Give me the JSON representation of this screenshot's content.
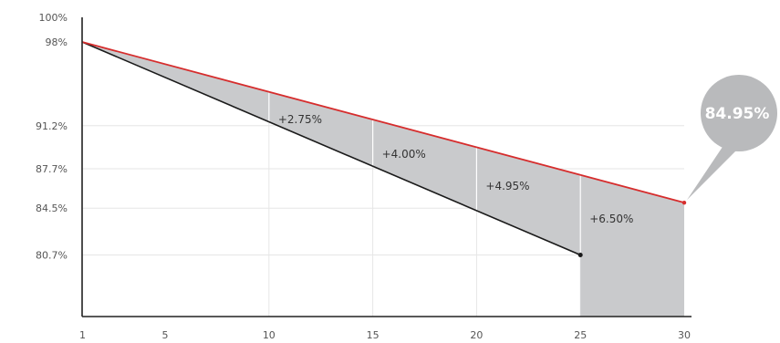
{
  "chart_data": {
    "type": "line",
    "title": "",
    "xlabel": "",
    "ylabel": "",
    "x_ticks": [
      "1",
      "5",
      "10",
      "15",
      "20",
      "25",
      "30"
    ],
    "y_ticks": [
      "100%",
      "98%",
      "91.2%",
      "87.7%",
      "84.5%",
      "80.7%"
    ],
    "y_tick_values": [
      100,
      98,
      91.2,
      87.7,
      84.5,
      80.7
    ],
    "xlim": [
      1,
      30
    ],
    "ylim": [
      75.7,
      100
    ],
    "grid": true,
    "series": [
      {
        "color": "#d62d2d",
        "points": [
          [
            1,
            98
          ],
          [
            30,
            84.95
          ]
        ]
      },
      {
        "color": "#1a1a1a",
        "points": [
          [
            1,
            98
          ],
          [
            25,
            80.7
          ]
        ]
      }
    ],
    "shaded_fill_color": "#c9cacc",
    "differences": [
      {
        "x_range": [
          10,
          15
        ],
        "label": "+2.75%"
      },
      {
        "x_range": [
          15,
          20
        ],
        "label": "+4.00%"
      },
      {
        "x_range": [
          20,
          25
        ],
        "label": "+4.95%"
      },
      {
        "x_range": [
          25,
          30
        ],
        "label": "+6.50%"
      }
    ],
    "callout": {
      "label": "84.95%",
      "x": 30,
      "y": 84.95,
      "color": "#b9babc"
    }
  }
}
